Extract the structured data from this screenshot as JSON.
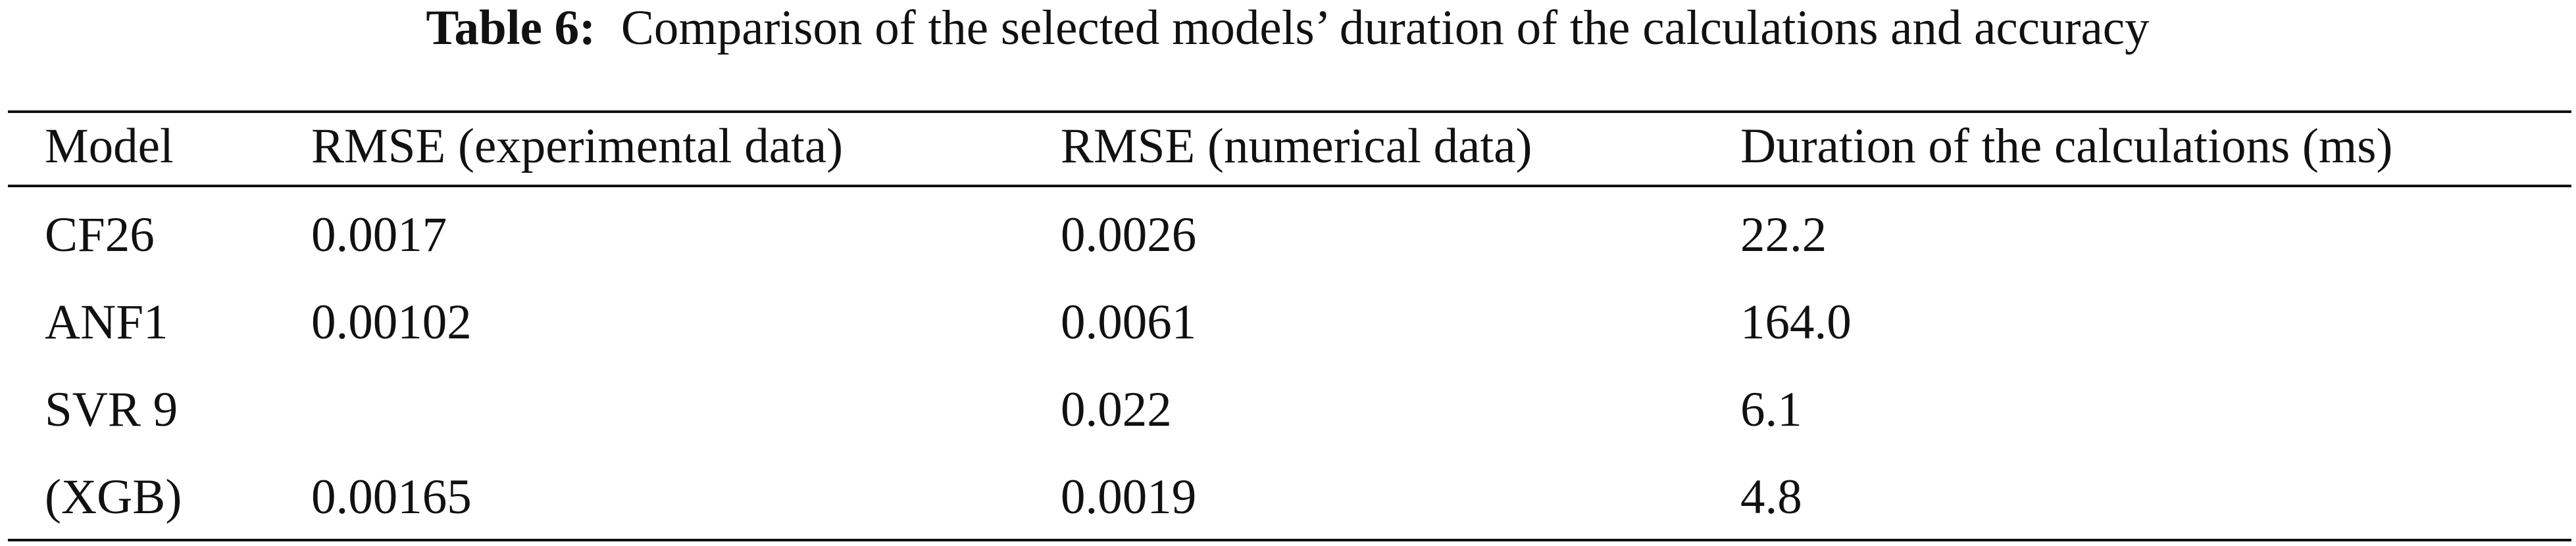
{
  "table": {
    "label": "Table 6:",
    "caption": "Comparison of the selected models’ duration of the calculations and accuracy",
    "columns": [
      "Model",
      "RMSE (experimental data)",
      "RMSE (numerical data)",
      "Duration of the calculations (ms)"
    ],
    "rows": [
      [
        "CF26",
        "0.0017",
        "0.0026",
        "22.2"
      ],
      [
        "ANF1",
        "0.00102",
        "0.0061",
        "164.0"
      ],
      [
        "SVR 9",
        null,
        "0.022",
        "6.1"
      ],
      [
        "(XGB)",
        "0.00165",
        "0.0019",
        "4.8"
      ]
    ]
  }
}
